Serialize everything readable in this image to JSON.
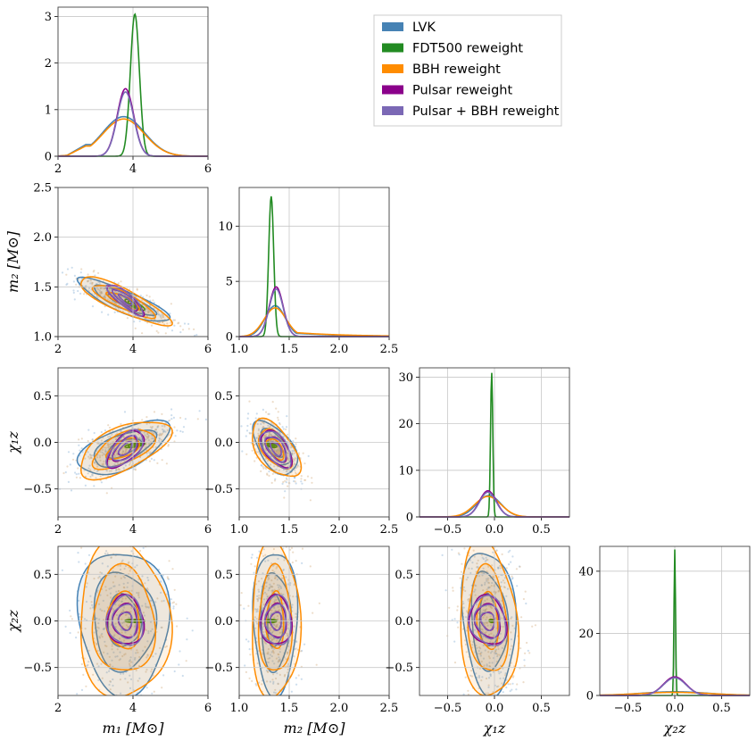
{
  "chart_data": {
    "type": "corner",
    "title": "",
    "parameters": [
      {
        "key": "m1",
        "label": "m₁ [M⊙]",
        "ticks": [
          "2",
          "4",
          "6"
        ],
        "range": [
          2,
          6
        ]
      },
      {
        "key": "m2",
        "label": "m₂ [M⊙]",
        "ticks": [
          "1.0",
          "1.5",
          "2.0",
          "2.5"
        ],
        "range": [
          1.0,
          2.5
        ]
      },
      {
        "key": "chi1z",
        "label": "χ₁z",
        "ticks": [
          "−0.5",
          "0.0",
          "0.5"
        ],
        "range": [
          -0.8,
          0.8
        ]
      },
      {
        "key": "chi2z",
        "label": "χ₂z",
        "ticks": [
          "−0.5",
          "0.0",
          "0.5"
        ],
        "range": [
          -0.8,
          0.8
        ]
      }
    ],
    "diag_yticks": [
      [
        "0",
        "1",
        "2",
        "3"
      ],
      [
        "0",
        "5",
        "10"
      ],
      [
        "0",
        "10",
        "20",
        "30"
      ],
      [
        "0",
        "20",
        "40"
      ]
    ],
    "diag_ylim": [
      [
        0,
        3.2
      ],
      [
        0,
        13.5
      ],
      [
        0,
        32
      ],
      [
        0,
        48
      ]
    ],
    "series": [
      {
        "name": "LVK",
        "color": "#4682b4",
        "fill": "#4682b4",
        "marginals": [
          {
            "center": 3.75,
            "width": 0.55,
            "peak": 0.85,
            "tail_left": 0.25
          },
          {
            "center": 1.36,
            "width": 0.1,
            "peak": 2.8,
            "tail_right": 0.3
          },
          {
            "center": -0.06,
            "width": 0.13,
            "peak": 4.6
          },
          {
            "center": 0.0,
            "width": 0.35,
            "peak": 1.2
          }
        ]
      },
      {
        "name": "FDT500 reweight",
        "color": "#228b22",
        "fill": "#228b22",
        "marginals": [
          {
            "center": 4.05,
            "width": 0.12,
            "peak": 3.05
          },
          {
            "center": 1.32,
            "width": 0.025,
            "peak": 12.7
          },
          {
            "center": -0.03,
            "width": 0.012,
            "peak": 31.0
          },
          {
            "center": 0.0,
            "width": 0.008,
            "peak": 47.0
          }
        ]
      },
      {
        "name": "BBH reweight",
        "color": "#ff8c00",
        "fill": "#ff8c00",
        "marginals": [
          {
            "center": 3.75,
            "width": 0.55,
            "peak": 0.8,
            "tail_left": 0.22
          },
          {
            "center": 1.36,
            "width": 0.11,
            "peak": 2.6,
            "tail_right": 0.35
          },
          {
            "center": -0.07,
            "width": 0.14,
            "peak": 4.4
          },
          {
            "center": 0.0,
            "width": 0.38,
            "peak": 1.0
          }
        ]
      },
      {
        "name": "Pulsar reweight",
        "color": "#8b008b",
        "fill": "#8b008b",
        "marginals": [
          {
            "center": 3.8,
            "width": 0.22,
            "peak": 1.45
          },
          {
            "center": 1.37,
            "width": 0.07,
            "peak": 4.5
          },
          {
            "center": -0.07,
            "width": 0.09,
            "peak": 5.6
          },
          {
            "center": 0.0,
            "width": 0.12,
            "peak": 6.0
          }
        ]
      },
      {
        "name": "Pulsar + BBH reweight",
        "color": "#7b68b5",
        "fill": "#7b68b5",
        "marginals": [
          {
            "center": 3.8,
            "width": 0.22,
            "peak": 1.38
          },
          {
            "center": 1.37,
            "width": 0.07,
            "peak": 4.3
          },
          {
            "center": -0.07,
            "width": 0.09,
            "peak": 5.3
          },
          {
            "center": 0.0,
            "width": 0.12,
            "peak": 5.7
          }
        ]
      }
    ],
    "legend_position": "top-right"
  }
}
